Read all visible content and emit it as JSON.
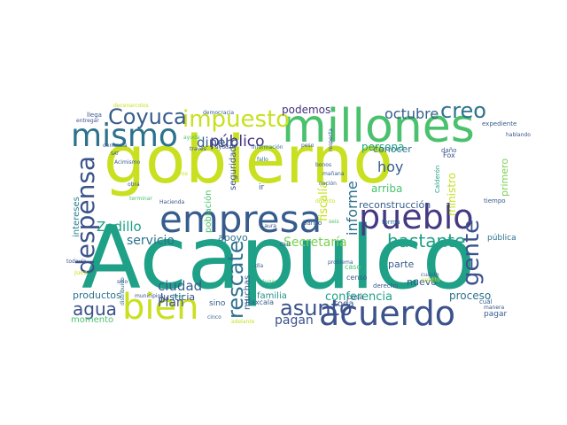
{
  "palette": {
    "yellow_green": "#c8e020",
    "lime": "#7ad151",
    "green": "#4ac16d",
    "teal": "#1fa187",
    "teal_dark": "#20928c",
    "blue_teal": "#277f8e",
    "blue": "#2c728e",
    "slate": "#365c8d",
    "indigo": "#3b528b",
    "purple": "#443983",
    "deep_purple": "#46327e",
    "dark": "#440154"
  },
  "words": [
    {
      "text": "Acapulco",
      "color": "#1fa187"
    },
    {
      "text": "gobierno",
      "color": "#c8e020"
    },
    {
      "text": "millones",
      "color": "#4ac16d"
    },
    {
      "text": "empresa",
      "color": "#365c8d"
    },
    {
      "text": "pueblo",
      "color": "#443983"
    },
    {
      "text": "acuerdo",
      "color": "#3b528b"
    },
    {
      "text": "bien",
      "color": "#c8e020"
    },
    {
      "text": "mismo",
      "color": "#2c728e"
    },
    {
      "text": "impuesto",
      "color": "#c8e020"
    },
    {
      "text": "Coyuca",
      "color": "#365c8d"
    },
    {
      "text": "despensa",
      "color": "#3b528b"
    },
    {
      "text": "gente",
      "color": "#3b528b"
    },
    {
      "text": "creo",
      "color": "#2c728e"
    },
    {
      "text": "asunto",
      "color": "#3b528b"
    },
    {
      "text": "rescate",
      "color": "#2c728e"
    },
    {
      "text": "bastante",
      "color": "#1fa187"
    },
    {
      "text": "octubre",
      "color": "#365c8d"
    },
    {
      "text": "público",
      "color": "#46327e"
    },
    {
      "text": "dinero",
      "color": "#365c8d"
    },
    {
      "text": "agua",
      "color": "#3b528b"
    },
    {
      "text": "hoy",
      "color": "#365c8d"
    },
    {
      "text": "informe",
      "color": "#2c728e"
    },
    {
      "text": "Zedillo",
      "color": "#1fa187"
    },
    {
      "text": "Secretaría",
      "color": "#7ad151"
    },
    {
      "text": "ciudad",
      "color": "#365c8d"
    },
    {
      "text": "servicio",
      "color": "#2c728e"
    },
    {
      "text": "Plan",
      "color": "#3b528b"
    },
    {
      "text": "pagan",
      "color": "#3b528b"
    },
    {
      "text": "conferencia",
      "color": "#1fa187"
    },
    {
      "text": "fiscalía",
      "color": "#c8e020"
    },
    {
      "text": "reconstrucción",
      "color": "#365c8d"
    },
    {
      "text": "arriba",
      "color": "#4ac16d"
    },
    {
      "text": "ministro",
      "color": "#c8e020"
    },
    {
      "text": "persona",
      "color": "#1fa187"
    },
    {
      "text": "conocer",
      "color": "#2c728e"
    },
    {
      "text": "podemos",
      "color": "#46327e"
    },
    {
      "text": "productos",
      "color": "#2c728e"
    },
    {
      "text": "apoyo",
      "color": "#2c728e"
    },
    {
      "text": "proceso",
      "color": "#2c728e"
    },
    {
      "text": "parte",
      "color": "#365c8d"
    },
    {
      "text": "nuevo",
      "color": "#365c8d"
    },
    {
      "text": "Justicia",
      "color": "#3b528b"
    },
    {
      "text": "familia",
      "color": "#20928c"
    },
    {
      "text": "muchas",
      "color": "#365c8d"
    },
    {
      "text": "toda",
      "color": "#3b528b"
    },
    {
      "text": "primero",
      "color": "#7ad151"
    },
    {
      "text": "pública",
      "color": "#2c728e"
    },
    {
      "text": "momento",
      "color": "#4ac16d"
    },
    {
      "text": "intereses",
      "color": "#277f8e"
    },
    {
      "text": "población",
      "color": "#4ac16d"
    },
    {
      "text": "seguridad",
      "color": "#3b528b"
    },
    {
      "text": "pagar",
      "color": "#365c8d"
    },
    {
      "text": "Tlaxcala",
      "color": "#365c8d"
    },
    {
      "text": "ir",
      "color": "#3b528b"
    },
    {
      "text": "sino",
      "color": "#365c8d"
    },
    {
      "text": "caso",
      "color": "#4ac16d"
    },
    {
      "text": "censo",
      "color": "#365c8d"
    },
    {
      "text": "cosa",
      "color": "#3b528b"
    },
    {
      "text": "banco",
      "color": "#365c8d"
    },
    {
      "text": "forma",
      "color": "#2c728e"
    },
    {
      "text": "derecho",
      "color": "#365c8d"
    },
    {
      "text": "Fox",
      "color": "#3b528b"
    },
    {
      "text": "Calderón",
      "color": "#1fa187"
    },
    {
      "text": "daño",
      "color": "#365c8d"
    },
    {
      "text": "expediente",
      "color": "#365c8d"
    },
    {
      "text": "hablando",
      "color": "#3b528b"
    },
    {
      "text": "mañana",
      "color": "#365c8d"
    },
    {
      "text": "tiempo",
      "color": "#365c8d"
    },
    {
      "text": "cuál",
      "color": "#365c8d"
    },
    {
      "text": "cuánto",
      "color": "#365c8d"
    },
    {
      "text": "crédito",
      "color": "#c8e020"
    },
    {
      "text": "problema",
      "color": "#365c8d"
    },
    {
      "text": "manera",
      "color": "#3b528b"
    },
    {
      "text": "bonos",
      "color": "#365c8d"
    },
    {
      "text": "nación",
      "color": "#365c8d"
    },
    {
      "text": "distinto",
      "color": "#c8e020"
    },
    {
      "text": "seis",
      "color": "#4ac16d"
    },
    {
      "text": "Laura",
      "color": "#3b528b"
    },
    {
      "text": "OHL",
      "color": "#365c8d"
    },
    {
      "text": "Hacienda",
      "color": "#3b528b"
    },
    {
      "text": "fallo",
      "color": "#2c728e"
    },
    {
      "text": "peso",
      "color": "#3b528b"
    },
    {
      "text": "respecta",
      "color": "#3b528b"
    },
    {
      "text": "información",
      "color": "#2c728e"
    },
    {
      "text": "democracia",
      "color": "#365c8d"
    },
    {
      "text": "ayuda",
      "color": "#4ac16d"
    },
    {
      "text": "través",
      "color": "#3b528b"
    },
    {
      "text": "ayudar",
      "color": "#3b528b"
    },
    {
      "text": "denuncia",
      "color": "#365c8d"
    },
    {
      "text": "SAT",
      "color": "#365c8d"
    },
    {
      "text": "Acimismo",
      "color": "#365c8d"
    },
    {
      "text": "entregar",
      "color": "#3b528b"
    },
    {
      "text": "llega",
      "color": "#3b528b"
    },
    {
      "text": "decenarcolos",
      "color": "#c8e020"
    },
    {
      "text": "obra",
      "color": "#365c8d"
    },
    {
      "text": "terminar",
      "color": "#4ac16d"
    },
    {
      "text": "litros",
      "color": "#c8e020"
    },
    {
      "text": "todavía",
      "color": "#3b528b"
    },
    {
      "text": "juez",
      "color": "#c8e020"
    },
    {
      "text": "sólo",
      "color": "#3b528b"
    },
    {
      "text": "distribuido",
      "color": "#2c728e"
    },
    {
      "text": "municipios",
      "color": "#3b528b"
    },
    {
      "text": "Buen",
      "color": "#1fa187"
    },
    {
      "text": "cinco",
      "color": "#365c8d"
    },
    {
      "text": "adelante",
      "color": "#c8e020"
    },
    {
      "text": "día",
      "color": "#365c8d"
    },
    {
      "text": "lugar",
      "color": "#4ac16d"
    }
  ]
}
